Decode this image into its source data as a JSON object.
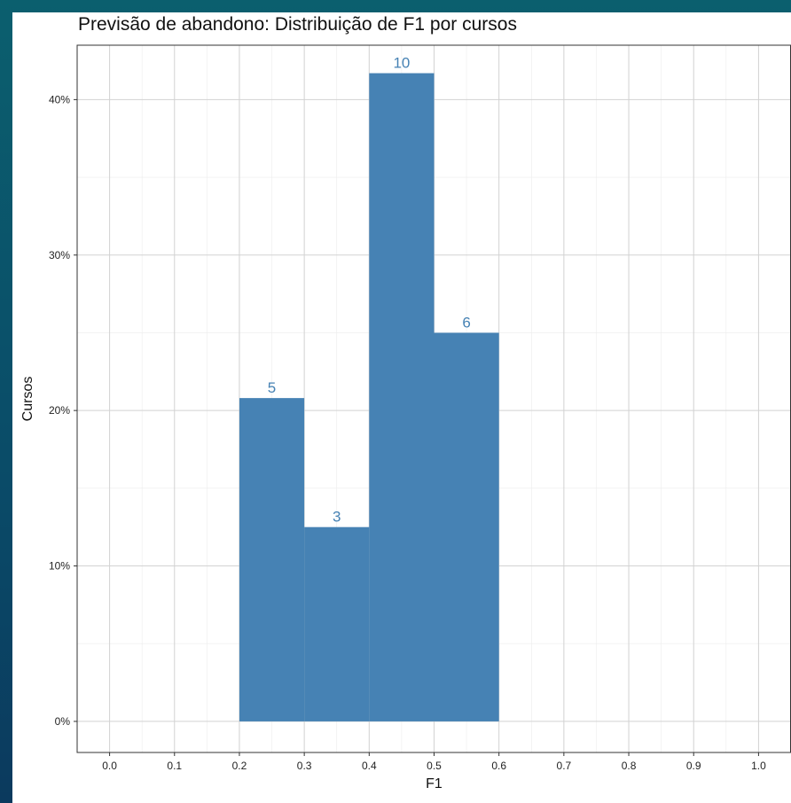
{
  "chart_data": {
    "type": "bar",
    "title": "Previsão de abandono: Distribuição de F1 por cursos",
    "xlabel": "F1",
    "ylabel": "Cursos",
    "bins": [
      {
        "x0": 0.2,
        "x1": 0.3,
        "percent": 20.8,
        "count": "5"
      },
      {
        "x0": 0.3,
        "x1": 0.4,
        "percent": 12.5,
        "count": "3"
      },
      {
        "x0": 0.4,
        "x1": 0.5,
        "percent": 41.7,
        "count": "10"
      },
      {
        "x0": 0.5,
        "x1": 0.6,
        "percent": 25.0,
        "count": "6"
      }
    ],
    "x_ticks": [
      "0.0",
      "0.1",
      "0.2",
      "0.3",
      "0.4",
      "0.5",
      "0.6",
      "0.7",
      "0.8",
      "0.9",
      "1.0"
    ],
    "y_ticks": [
      "0%",
      "10%",
      "20%",
      "30%",
      "40%"
    ],
    "xlim": [
      -0.05,
      1.05
    ],
    "ylim": [
      -2,
      43.5
    ],
    "grid": true,
    "bar_color": "#4682b4"
  }
}
